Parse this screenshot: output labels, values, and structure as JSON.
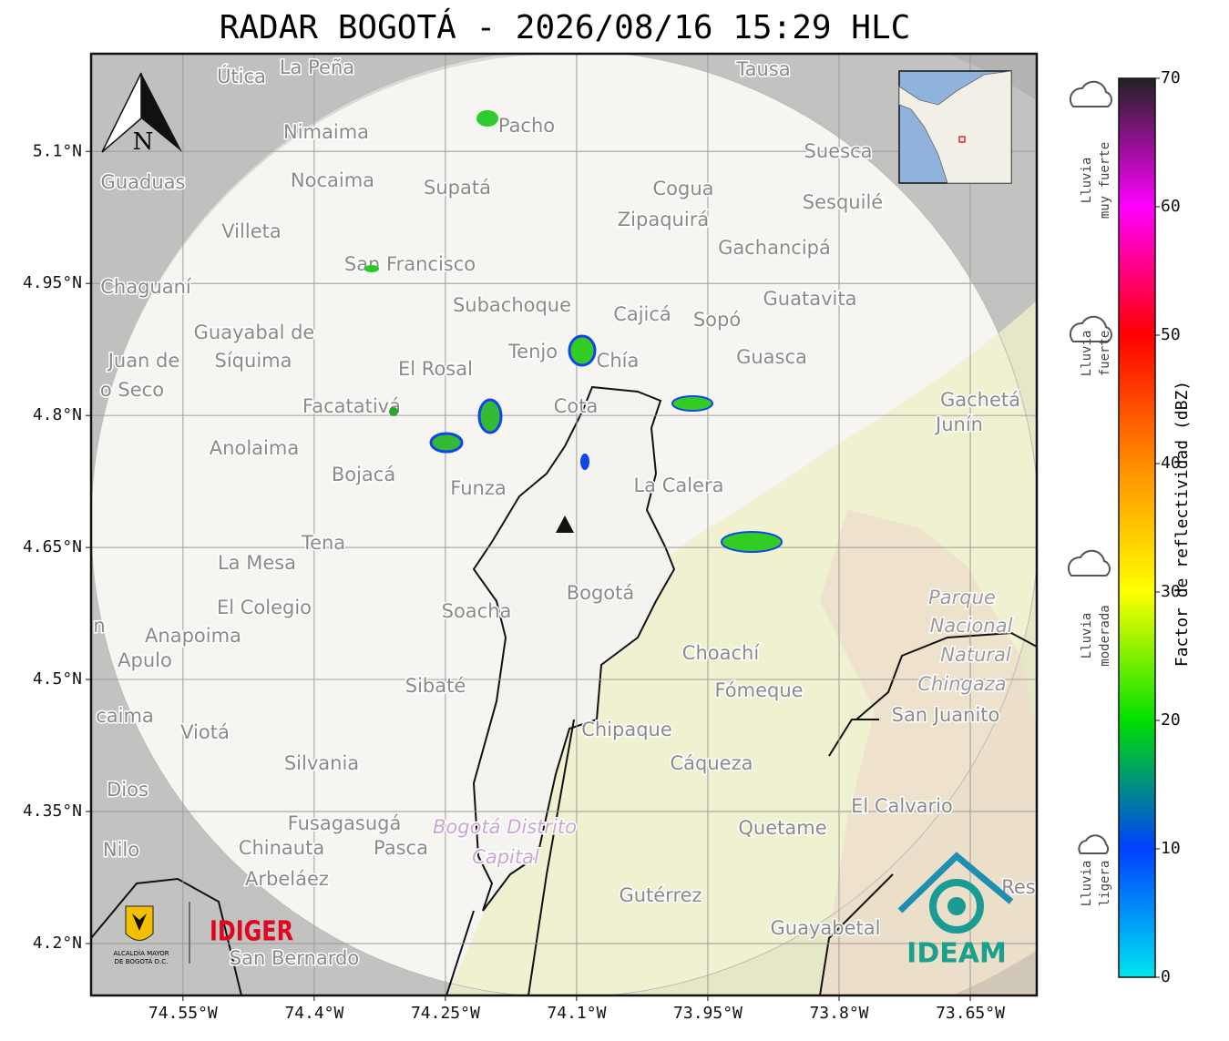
{
  "title": "RADAR BOGOTÁ - 2026/08/16 15:29 HLC",
  "map": {
    "lonlim": [
      -74.655,
      -73.574
    ],
    "latlim": [
      4.141,
      5.211
    ],
    "grid": true,
    "lat_ticks": [
      {
        "value": 5.1,
        "label": "5.1°N"
      },
      {
        "value": 4.95,
        "label": "4.95°N"
      },
      {
        "value": 4.8,
        "label": "4.8°N"
      },
      {
        "value": 4.65,
        "label": "4.65°N"
      },
      {
        "value": 4.5,
        "label": "4.5°N"
      },
      {
        "value": 4.35,
        "label": "4.35°N"
      },
      {
        "value": 4.2,
        "label": "4.2°N"
      }
    ],
    "lon_ticks": [
      {
        "value": -74.55,
        "label": "74.55°W"
      },
      {
        "value": -74.4,
        "label": "74.4°W"
      },
      {
        "value": -74.25,
        "label": "74.25°W"
      },
      {
        "value": -74.1,
        "label": "74.1°W"
      },
      {
        "value": -73.95,
        "label": "73.95°W"
      },
      {
        "value": -73.8,
        "label": "73.8°W"
      },
      {
        "value": -73.65,
        "label": "73.65°W"
      }
    ],
    "north": "N",
    "places": [
      "La Peña",
      "Útica",
      "Tausa",
      "Pacho",
      "Nimaima",
      "Guaduas",
      "Nocaima",
      "Supatá",
      "Cogua",
      "Suesca",
      "Sesquilé",
      "Zipaquirá",
      "Villeta",
      "Gachancipá",
      "San Francisco",
      "Chaguaní",
      "Subachoque",
      "Cajicá",
      "Sopó",
      "Guatavita",
      "Guayabal de",
      "Síquima",
      "Juan de",
      "o Seco",
      "Tenjo",
      "Chía",
      "El Rosal",
      "Guasca",
      "Facatativá",
      "Cota",
      "Gachetá",
      "Junín",
      "Anolaima",
      "Bojacá",
      "Funza",
      "La Calera",
      "Tena",
      "La Mesa",
      "Parque",
      "Nacional",
      "Natural",
      "Chingaza",
      "Bogotá",
      "El Colegio",
      "Soacha",
      "Anapoima",
      "Apulo",
      "Choachí",
      "Fómeque",
      "Sibaté",
      "San Juanito",
      "caima",
      "Viotá",
      "Chipaque",
      "Cáqueza",
      "Silvania",
      "Dios",
      "El Calvario",
      "Quetame",
      "Fusagasugá",
      "Bogotá Distrito",
      "Capital",
      "Nilo",
      "Chinauta",
      "Pasca",
      "Arbeláez",
      "Gutérrez",
      "Res",
      "Guayabetal",
      "San Bernardo",
      "n"
    ]
  },
  "colorbar": {
    "lim": [
      0,
      70
    ],
    "ticks": [
      0,
      10,
      20,
      30,
      40,
      50,
      60,
      70
    ],
    "label": "Factor de reflectividad (dBZ)",
    "colors": [
      "#00e5f0",
      "#0040ff",
      "#00e000",
      "#ffff00",
      "#ff8c00",
      "#ff0000",
      "#ff00ff",
      "#222222"
    ]
  },
  "rain_levels": [
    [
      "Lluvia",
      "muy fuerte"
    ],
    [
      "Lluvia",
      "fuerte"
    ],
    [
      "Lluvia",
      "moderada"
    ],
    [
      "Lluvia",
      "ligera"
    ]
  ],
  "logos": {
    "alcaldia": [
      "ALCALDÍA MAYOR",
      "DE BOGOTÁ D.C."
    ],
    "idiger": "IDIGER",
    "ideam": "IDEAM"
  }
}
